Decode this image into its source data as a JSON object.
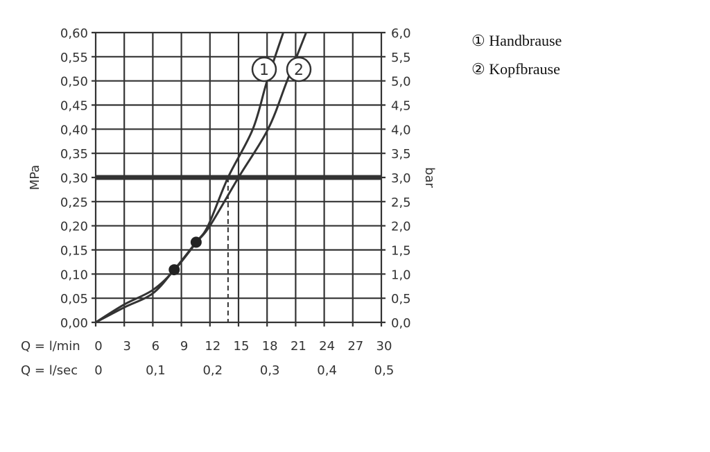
{
  "chart_data": {
    "type": "line",
    "title": "",
    "xlabel": "Q = l/min",
    "xlabel_secondary": "Q = l/sec",
    "ylabel": "MPa",
    "ylabel_right": "bar",
    "xlim": [
      0,
      30
    ],
    "ylim": [
      0,
      0.6
    ],
    "ylim_right": [
      0,
      6
    ],
    "grid": true,
    "x_ticks": [
      "0",
      "3",
      "6",
      "9",
      "12",
      "15",
      "18",
      "21",
      "24",
      "27",
      "30"
    ],
    "x_ticks_secondary": [
      {
        "at": 0,
        "label": "0"
      },
      {
        "at": 6,
        "label": "0,1"
      },
      {
        "at": 12,
        "label": "0,2"
      },
      {
        "at": 18,
        "label": "0,3"
      },
      {
        "at": 24,
        "label": "0,4"
      },
      {
        "at": 30,
        "label": "0,5"
      }
    ],
    "y_ticks": [
      "0,00",
      "0,05",
      "0,10",
      "0,15",
      "0,20",
      "0,25",
      "0,30",
      "0,35",
      "0,40",
      "0,45",
      "0,50",
      "0,55",
      "0,60"
    ],
    "y_ticks_right": [
      "0,0",
      "0,5",
      "1,0",
      "1,5",
      "2,0",
      "2,5",
      "3,0",
      "3,5",
      "4,0",
      "4,5",
      "5,0",
      "5,5",
      "6,0"
    ],
    "reference_line": {
      "y": 0.3,
      "style": "heavy"
    },
    "series": [
      {
        "name": "Handbrause",
        "marker_label": "1",
        "x": [
          0,
          3,
          6,
          8.2,
          10.5,
          11.8,
          13.9,
          16.5,
          18.0,
          19.7
        ],
        "y": [
          0,
          0.031,
          0.06,
          0.108,
          0.165,
          0.2,
          0.3,
          0.4,
          0.5,
          0.6
        ],
        "dropline_at": 13.9
      },
      {
        "name": "Kopfbrause",
        "marker_label": "2",
        "x": [
          0,
          3,
          6,
          8.3,
          10.6,
          12.0,
          15.0,
          18.1,
          20.1,
          22.1
        ],
        "y": [
          0,
          0.037,
          0.067,
          0.109,
          0.166,
          0.2,
          0.3,
          0.4,
          0.5,
          0.6
        ],
        "dropline_at": 15.0
      }
    ],
    "points": [
      {
        "x": 8.25,
        "y": 0.109
      },
      {
        "x": 10.55,
        "y": 0.166
      }
    ],
    "legend": {
      "placement": "right",
      "entries": [
        "① Handbrause",
        "② Kopfbrause"
      ]
    },
    "colors": {
      "line": "#333333",
      "grid": "#333333"
    }
  }
}
